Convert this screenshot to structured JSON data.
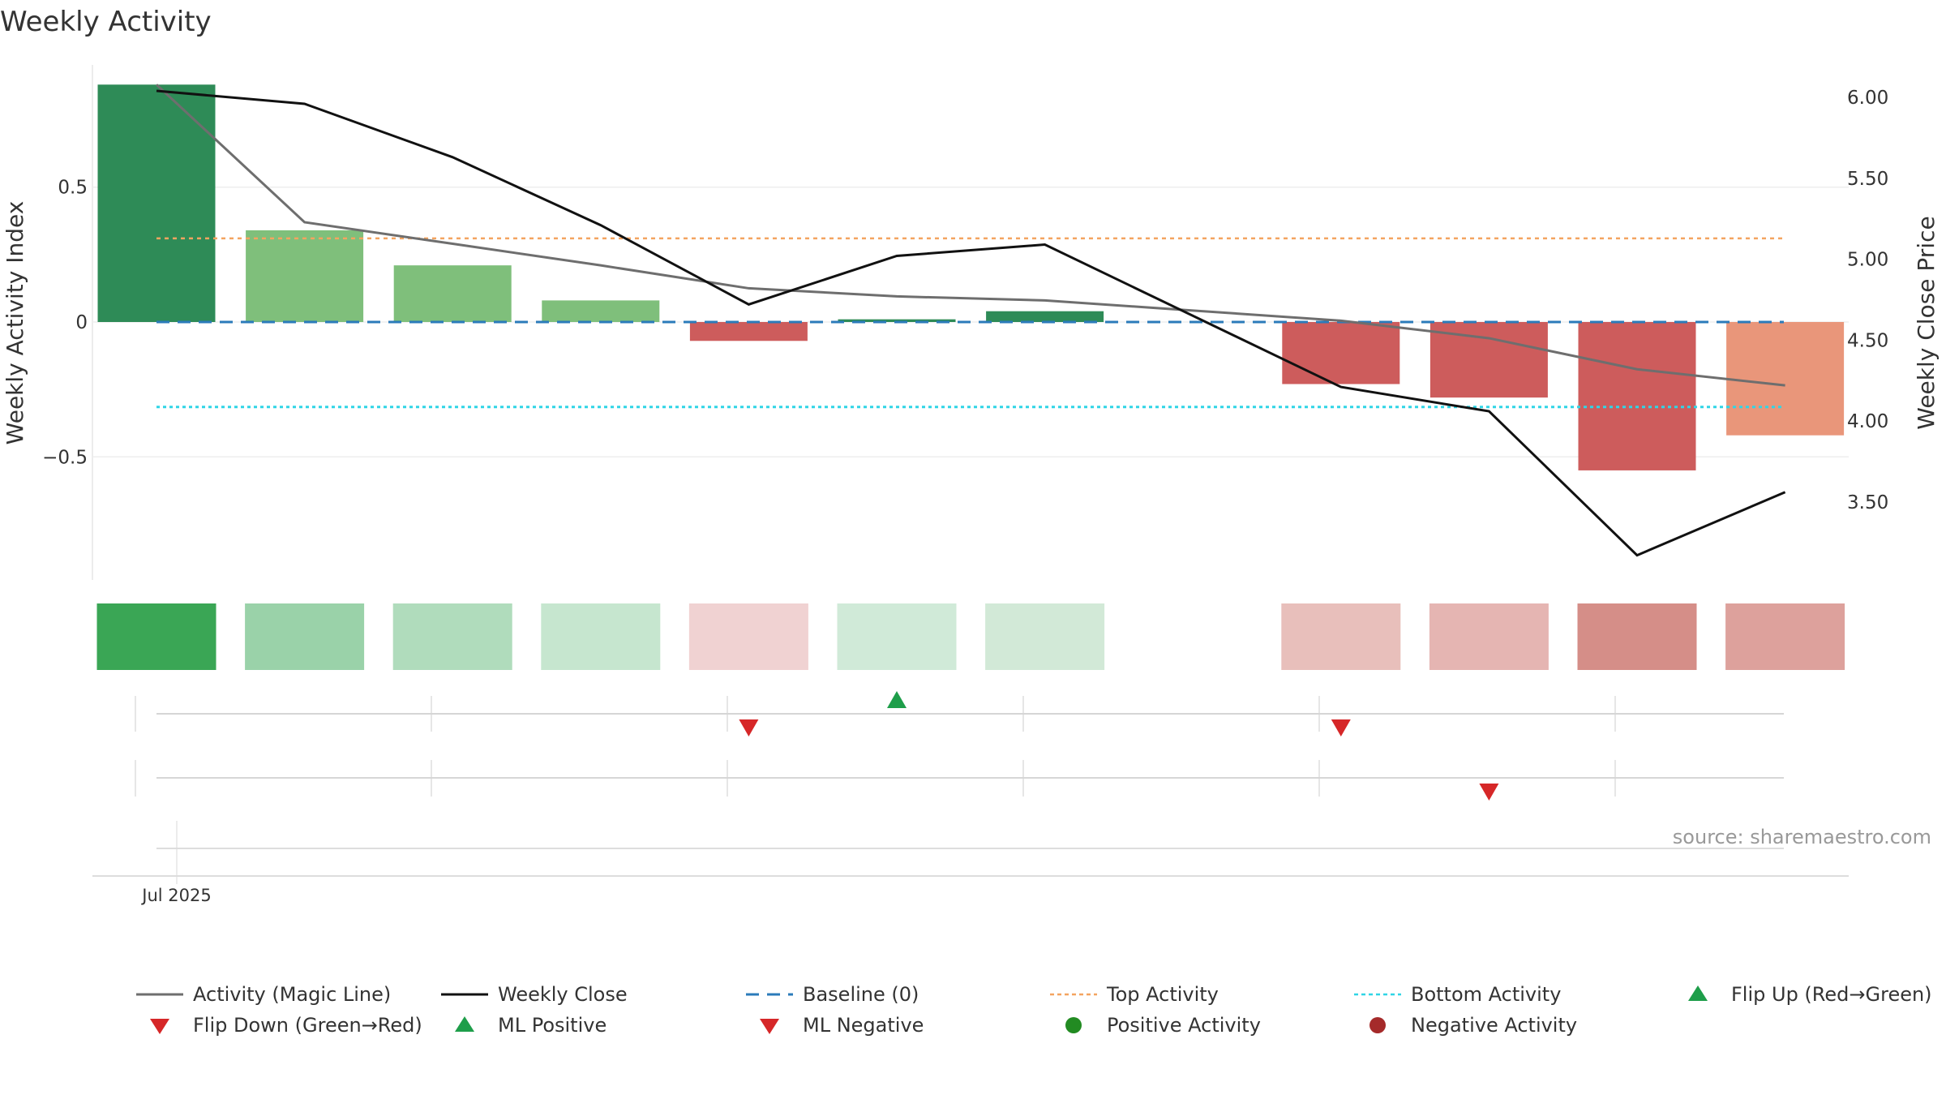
{
  "chart_data": {
    "type": "bar",
    "title": "Weekly Activity",
    "ylabel": "Weekly Activity Index",
    "ylabel_right": "Weekly Close Price",
    "xtick_labels": [
      "Jul 2025"
    ],
    "source": "source: sharemaestro.com",
    "ylim_left": [
      -0.95,
      0.9
    ],
    "ylim_right": [
      3.0,
      6.25
    ],
    "yticks_left": [
      {
        "value": 0.5,
        "label": "0.5"
      },
      {
        "value": 0,
        "label": "0"
      },
      {
        "value": -0.5,
        "label": "−0.5"
      }
    ],
    "yticks_right": [
      {
        "value": 6.0,
        "label": "6.00"
      },
      {
        "value": 5.5,
        "label": "5.50"
      },
      {
        "value": 5.0,
        "label": "5.00"
      },
      {
        "value": 4.5,
        "label": "4.50"
      },
      {
        "value": 4.0,
        "label": "4.00"
      },
      {
        "value": 3.5,
        "label": "3.50"
      }
    ],
    "weeks": [
      0,
      1,
      2,
      3,
      4,
      5,
      6,
      8,
      9,
      10,
      11
    ],
    "activity": [
      0.88,
      0.34,
      0.21,
      0.08,
      -0.07,
      0.01,
      0.04,
      -0.23,
      -0.28,
      -0.55,
      -0.42
    ],
    "bar_colors": [
      "#2e8b57",
      "#7fbf7b",
      "#7fbf7b",
      "#7fbf7b",
      "#cd5c5c",
      "#2e8b57",
      "#2e8b57",
      "#cd5c5c",
      "#cd5c5c",
      "#cd5c5c",
      "#e9967a"
    ],
    "heat_colors": [
      "#3aa655",
      "#9ad2a9",
      "#b0dcbc",
      "#c6e6cf",
      "#f0d2d2",
      "#d0ead8",
      "#d2e9d7",
      "#e8bfbb",
      "#e5b5b2",
      "#d58e88",
      "#dda19c"
    ],
    "magic_line": [
      0.88,
      0.37,
      0.29,
      0.21,
      0.125,
      0.095,
      0.08,
      0.005,
      -0.06,
      -0.175,
      -0.235
    ],
    "weekly_close": [
      6.04,
      5.96,
      5.63,
      5.21,
      4.72,
      5.02,
      5.09,
      4.21,
      4.06,
      3.17,
      3.56
    ],
    "top_activity": 0.31,
    "bottom_activity": -0.315,
    "baseline": 0,
    "flip_up_weeks": [
      5
    ],
    "flip_down_weeks": [
      4,
      8
    ],
    "ml_negative_weeks": [
      9
    ],
    "colors": {
      "magic_line": "#6e6e6e",
      "weekly_close": "#111111",
      "baseline": "#2b7bba",
      "top": "#f4a460",
      "bottom": "#30d5e6",
      "up": "#1e9e4a",
      "down": "#d62728",
      "positive": "#228b22",
      "negative": "#a52a2a"
    },
    "legend": [
      {
        "label": "Activity (Magic Line)",
        "kind": "line",
        "color": "#6e6e6e"
      },
      {
        "label": "Weekly Close",
        "kind": "line",
        "color": "#111111"
      },
      {
        "label": "Baseline (0)",
        "kind": "dash",
        "color": "#2b7bba"
      },
      {
        "label": "Top Activity",
        "kind": "dot",
        "color": "#f4a460"
      },
      {
        "label": "Bottom Activity",
        "kind": "dot",
        "color": "#30d5e6"
      },
      {
        "label": "Flip Up (Red→Green)",
        "kind": "up",
        "color": "#1e9e4a"
      },
      {
        "label": "Flip Down (Green→Red)",
        "kind": "down",
        "color": "#d62728"
      },
      {
        "label": "ML Positive",
        "kind": "up",
        "color": "#1e9e4a"
      },
      {
        "label": "ML Negative",
        "kind": "down",
        "color": "#d62728"
      },
      {
        "label": "Positive Activity",
        "kind": "circle",
        "color": "#228b22"
      },
      {
        "label": "Negative Activity",
        "kind": "circle",
        "color": "#a52a2a"
      }
    ]
  }
}
